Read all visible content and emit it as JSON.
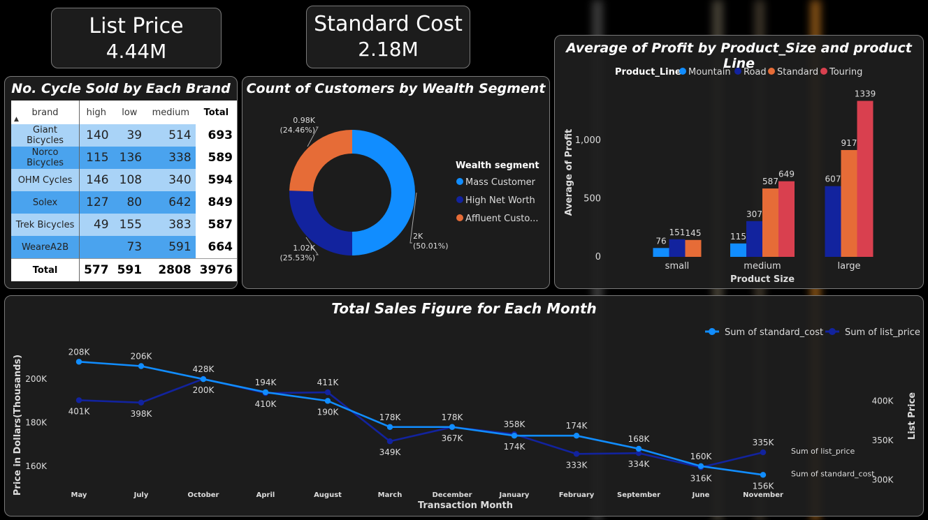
{
  "kpis": {
    "list_price": {
      "label": "List Price",
      "value": "4.44M"
    },
    "standard_cost": {
      "label": "Standard Cost",
      "value": "2.18M"
    }
  },
  "brand_table": {
    "title": "No. Cycle Sold by Each Brand",
    "columns": [
      "brand",
      "high",
      "low",
      "medium",
      "Total"
    ],
    "rows": [
      [
        "Giant Bicycles",
        "140",
        "39",
        "514",
        "693"
      ],
      [
        "Norco Bicycles",
        "115",
        "136",
        "338",
        "589"
      ],
      [
        "OHM Cycles",
        "146",
        "108",
        "340",
        "594"
      ],
      [
        "Solex",
        "127",
        "80",
        "642",
        "849"
      ],
      [
        "Trek Bicycles",
        "49",
        "155",
        "383",
        "587"
      ],
      [
        "WeareA2B",
        "",
        "73",
        "591",
        "664"
      ]
    ],
    "total": [
      "Total",
      "577",
      "591",
      "2808",
      "3976"
    ]
  },
  "chart_data": [
    {
      "type": "pie",
      "title": "Count of Customers by Wealth Segment",
      "legend_title": "Wealth segment",
      "legend_placement": "right",
      "categories": [
        "Mass Customer",
        "High Net Worth",
        "Affluent Custo..."
      ],
      "values": [
        2000,
        1020,
        980
      ],
      "data_labels": [
        "2K",
        "1.02K",
        "0.98K"
      ],
      "percent_labels": [
        "(50.01%)",
        "(25.53%)",
        "(24.46%)"
      ],
      "colors": [
        "#118dff",
        "#12239e",
        "#e66c37"
      ]
    },
    {
      "type": "bar",
      "title": "Average of Profit by Product_Size and product Line",
      "xlabel": "Product Size",
      "ylabel": "Average of Profit",
      "legend_title": "Product_Line",
      "legend_placement": "top",
      "categories": [
        "small",
        "medium",
        "large"
      ],
      "series": [
        {
          "name": "Mountain",
          "color": "#118dff",
          "values": [
            76,
            115,
            null
          ],
          "labels": [
            "76",
            "115",
            ""
          ]
        },
        {
          "name": "Road",
          "color": "#12239e",
          "values": [
            151,
            307,
            607
          ],
          "labels": [
            "151",
            "307",
            "607"
          ]
        },
        {
          "name": "Standard",
          "color": "#e66c37",
          "values": [
            145,
            587,
            917
          ],
          "labels": [
            "145",
            "587",
            "917"
          ]
        },
        {
          "name": "Touring",
          "color": "#d9404f",
          "values": [
            null,
            649,
            1339
          ],
          "labels": [
            "",
            "649",
            "1339"
          ]
        }
      ],
      "ylim": [
        0,
        1450
      ],
      "yticks": [
        0,
        500,
        1000
      ],
      "ytick_labels": [
        "0",
        "500",
        "1,000"
      ]
    },
    {
      "type": "line",
      "title": "Total Sales Figure for Each Month",
      "xlabel": "Transaction Month",
      "ylabel": "Price in Dollars(Thousands)",
      "y2label": "List Price",
      "legend_placement": "top-right",
      "categories": [
        "May",
        "July",
        "October",
        "April",
        "August",
        "March",
        "December",
        "January",
        "February",
        "September",
        "June",
        "November"
      ],
      "series": [
        {
          "name": "Sum of standard_cost",
          "color": "#118dff",
          "axis": "left",
          "values": [
            208,
            206,
            200,
            194,
            190,
            178,
            178,
            174,
            174,
            168,
            160,
            156
          ],
          "labels": [
            "208K",
            "206K",
            "200K",
            "194K",
            "190K",
            "178K",
            "178K",
            "174K",
            "174K",
            "168K",
            "160K",
            "156K"
          ]
        },
        {
          "name": "Sum of list_price",
          "color": "#12239e",
          "axis": "right",
          "values": [
            401,
            398,
            428,
            410,
            411,
            349,
            367,
            358,
            333,
            334,
            316,
            335
          ],
          "labels": [
            "401K",
            "398K",
            "428K",
            "410K",
            "411K",
            "349K",
            "367K",
            "358K",
            "333K",
            "334K",
            "316K",
            "335K"
          ]
        }
      ],
      "ylim": [
        150,
        219
      ],
      "yticks": [
        160,
        180,
        200
      ],
      "ytick_labels": [
        "160K",
        "180K",
        "200K"
      ],
      "y2lim": [
        290,
        480
      ],
      "y2ticks": [
        300,
        350,
        400
      ],
      "y2tick_labels": [
        "300K",
        "350K",
        "400K"
      ]
    }
  ]
}
